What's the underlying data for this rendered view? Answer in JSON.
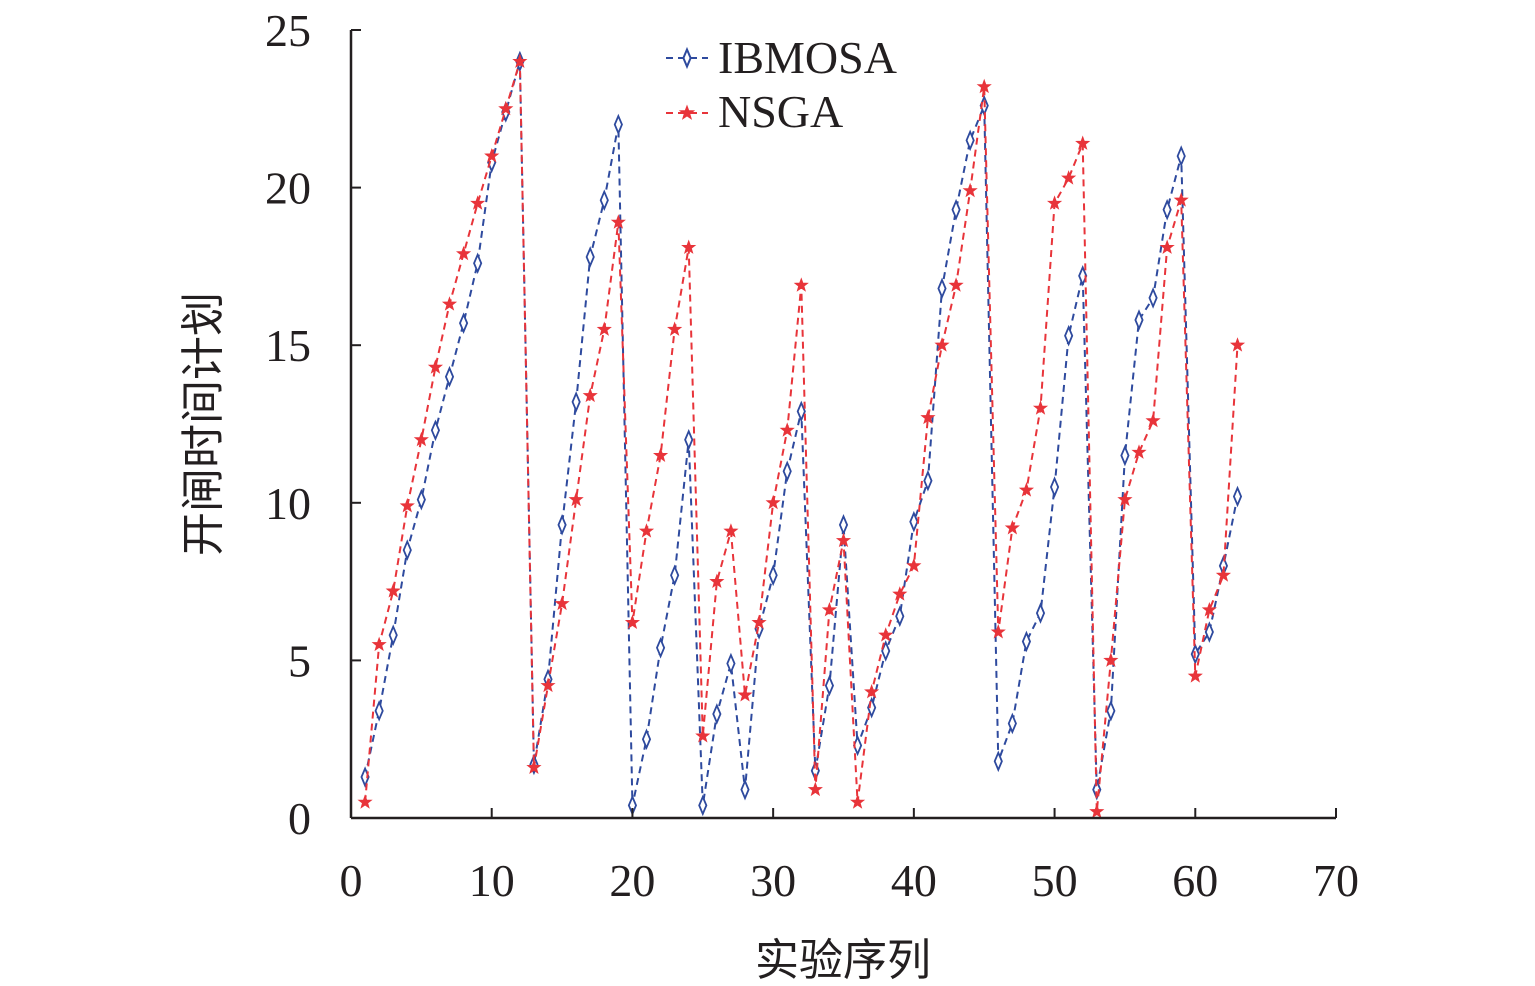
{
  "chart_data": {
    "type": "line",
    "title": "",
    "xlabel": "实验序列",
    "ylabel": "开闸时间计划",
    "xlim": [
      0,
      70
    ],
    "ylim": [
      0,
      25
    ],
    "xticks": [
      "0",
      "10",
      "20",
      "30",
      "40",
      "50",
      "60",
      "70"
    ],
    "yticks": [
      "0",
      "5",
      "10",
      "15",
      "20",
      "25"
    ],
    "grid": false,
    "legend_position": "top-center",
    "x": [
      1,
      2,
      3,
      4,
      5,
      6,
      7,
      8,
      9,
      10,
      11,
      12,
      13,
      14,
      15,
      16,
      17,
      18,
      19,
      20,
      21,
      22,
      23,
      24,
      25,
      26,
      27,
      28,
      29,
      30,
      31,
      32,
      33,
      34,
      35,
      36,
      37,
      38,
      39,
      40,
      41,
      42,
      43,
      44,
      45,
      46,
      47,
      48,
      49,
      50,
      51,
      52,
      53,
      54,
      55,
      56,
      57,
      58,
      59,
      60,
      61,
      62,
      63
    ],
    "series": [
      {
        "name": "IBMOSA",
        "color": "#2e4a9e",
        "marker": "diamond",
        "values": [
          1.3,
          3.4,
          5.8,
          8.5,
          10.1,
          12.3,
          14.0,
          15.7,
          17.6,
          20.8,
          22.4,
          24.0,
          1.7,
          4.4,
          9.3,
          13.2,
          17.8,
          19.6,
          22.0,
          0.4,
          2.5,
          5.4,
          7.7,
          12.0,
          0.4,
          3.3,
          4.9,
          0.9,
          6.0,
          7.7,
          11.0,
          12.9,
          1.5,
          4.2,
          9.3,
          2.3,
          3.5,
          5.3,
          6.4,
          9.4,
          10.7,
          16.8,
          19.3,
          21.5,
          22.6,
          1.8,
          3.0,
          5.6,
          6.5,
          10.5,
          15.3,
          17.2,
          0.9,
          3.4,
          11.5,
          15.8,
          16.5,
          19.3,
          21.0,
          5.2,
          5.9,
          8.0,
          10.2
        ]
      },
      {
        "name": "NSGA",
        "color": "#e8343a",
        "marker": "star",
        "values": [
          0.5,
          5.5,
          7.2,
          9.9,
          12.0,
          14.3,
          16.3,
          17.9,
          19.5,
          21.0,
          22.5,
          24.0,
          1.6,
          4.2,
          6.8,
          10.1,
          13.4,
          15.5,
          18.9,
          6.2,
          9.1,
          11.5,
          15.5,
          18.1,
          2.6,
          7.5,
          9.1,
          3.9,
          6.2,
          10.0,
          12.3,
          16.9,
          0.9,
          6.6,
          8.8,
          0.5,
          4.0,
          5.8,
          7.1,
          8.0,
          12.7,
          15.0,
          16.9,
          19.9,
          23.2,
          5.9,
          9.2,
          10.4,
          13.0,
          19.5,
          20.3,
          21.4,
          0.2,
          5.0,
          10.1,
          11.6,
          12.6,
          18.1,
          19.6,
          4.5,
          6.6,
          7.7,
          15.0
        ]
      }
    ]
  }
}
